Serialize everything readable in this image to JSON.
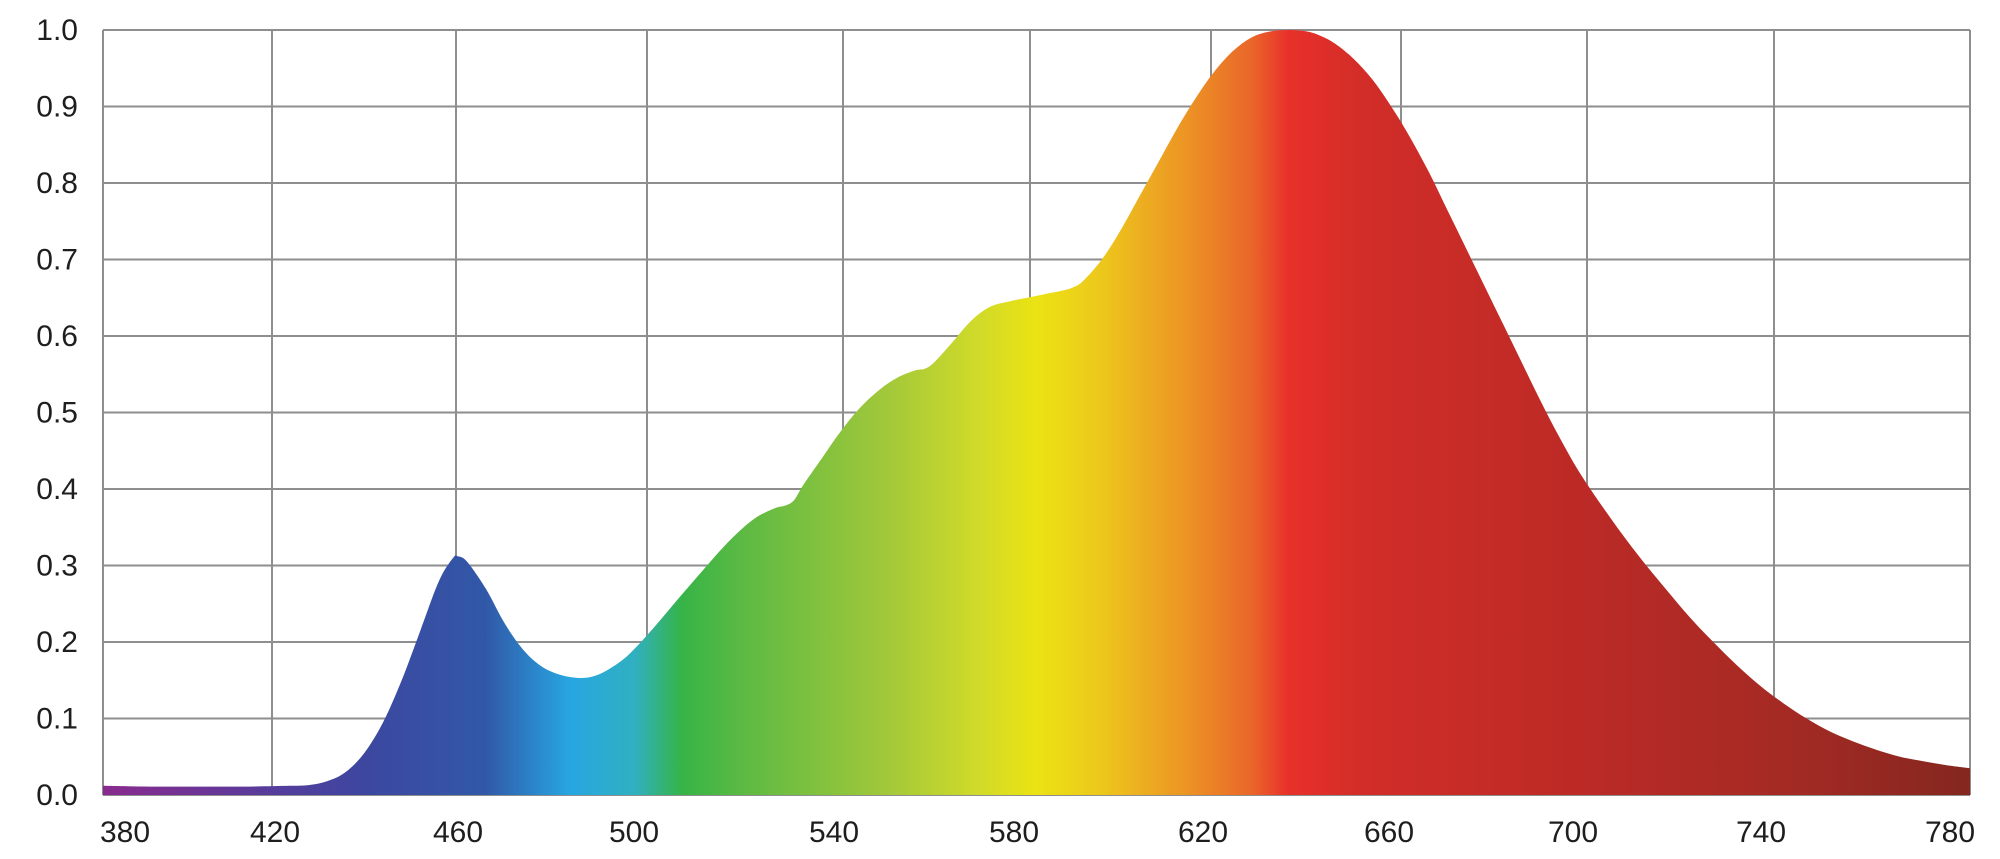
{
  "chart_data": {
    "type": "area",
    "title": "",
    "xlabel": "",
    "ylabel": "",
    "xlim": [
      380,
      780
    ],
    "ylim": [
      0,
      1
    ],
    "grid": true,
    "x_ticks": [
      "380",
      "420",
      "460",
      "500",
      "540",
      "580",
      "620",
      "660",
      "700",
      "740",
      "780"
    ],
    "y_ticks": [
      "0.0",
      "0.1",
      "0.2",
      "0.3",
      "0.4",
      "0.5",
      "0.6",
      "0.7",
      "0.8",
      "0.9",
      "1.0"
    ],
    "series": [
      {
        "x": [
          380,
          390,
          400,
          410,
          420,
          424,
          428,
          432,
          436,
          440,
          444,
          448,
          452,
          455,
          456,
          458,
          462,
          466,
          470,
          474,
          478,
          482,
          485,
          488,
          492,
          496,
          500,
          504,
          508,
          512,
          516,
          520,
          524,
          526,
          528,
          530,
          534,
          538,
          542,
          546,
          550,
          554,
          556,
          558,
          562,
          566,
          570,
          574,
          578,
          582,
          586,
          588,
          590,
          594,
          598,
          602,
          606,
          610,
          614,
          618,
          622,
          626,
          630,
          634,
          638,
          641,
          644,
          648,
          652,
          656,
          660,
          664,
          668,
          672,
          676,
          680,
          684,
          688,
          692,
          696,
          700,
          705,
          710,
          715,
          720,
          725,
          730,
          735,
          740,
          745,
          750,
          755,
          760,
          765,
          770,
          775,
          780
        ],
        "y": [
          0.012,
          0.011,
          0.011,
          0.011,
          0.012,
          0.013,
          0.018,
          0.03,
          0.055,
          0.095,
          0.15,
          0.215,
          0.28,
          0.31,
          0.312,
          0.305,
          0.27,
          0.225,
          0.19,
          0.168,
          0.157,
          0.153,
          0.155,
          0.163,
          0.18,
          0.205,
          0.233,
          0.262,
          0.29,
          0.318,
          0.343,
          0.363,
          0.375,
          0.378,
          0.385,
          0.405,
          0.44,
          0.475,
          0.505,
          0.528,
          0.545,
          0.555,
          0.557,
          0.565,
          0.592,
          0.62,
          0.638,
          0.645,
          0.65,
          0.655,
          0.66,
          0.664,
          0.672,
          0.7,
          0.738,
          0.782,
          0.826,
          0.87,
          0.91,
          0.945,
          0.972,
          0.99,
          0.998,
          1.0,
          0.998,
          0.992,
          0.982,
          0.962,
          0.935,
          0.9,
          0.86,
          0.815,
          0.765,
          0.715,
          0.665,
          0.615,
          0.565,
          0.515,
          0.468,
          0.425,
          0.388,
          0.345,
          0.305,
          0.268,
          0.232,
          0.2,
          0.17,
          0.143,
          0.12,
          0.1,
          0.083,
          0.07,
          0.059,
          0.05,
          0.044,
          0.039,
          0.035
        ]
      }
    ],
    "gradient_stops": [
      {
        "x": 380,
        "color": "#8a2a8e"
      },
      {
        "x": 412,
        "color": "#5b3a9a"
      },
      {
        "x": 436,
        "color": "#3d47a0"
      },
      {
        "x": 462,
        "color": "#3158a8"
      },
      {
        "x": 480,
        "color": "#27a6e2"
      },
      {
        "x": 494,
        "color": "#30b0c0"
      },
      {
        "x": 504,
        "color": "#36b447"
      },
      {
        "x": 518,
        "color": "#5fba43"
      },
      {
        "x": 548,
        "color": "#a2c83a"
      },
      {
        "x": 566,
        "color": "#cdd92b"
      },
      {
        "x": 580,
        "color": "#ebe313"
      },
      {
        "x": 594,
        "color": "#edc71c"
      },
      {
        "x": 612,
        "color": "#ec9424"
      },
      {
        "x": 626,
        "color": "#ea672a"
      },
      {
        "x": 634,
        "color": "#e8302a"
      },
      {
        "x": 650,
        "color": "#d22d28"
      },
      {
        "x": 700,
        "color": "#ba2a26"
      },
      {
        "x": 740,
        "color": "#a52a24"
      },
      {
        "x": 780,
        "color": "#84271f"
      }
    ],
    "colors": {
      "grid": "#8e8e8e",
      "tick_text": "#1e1e1e",
      "background": "#ffffff"
    }
  }
}
